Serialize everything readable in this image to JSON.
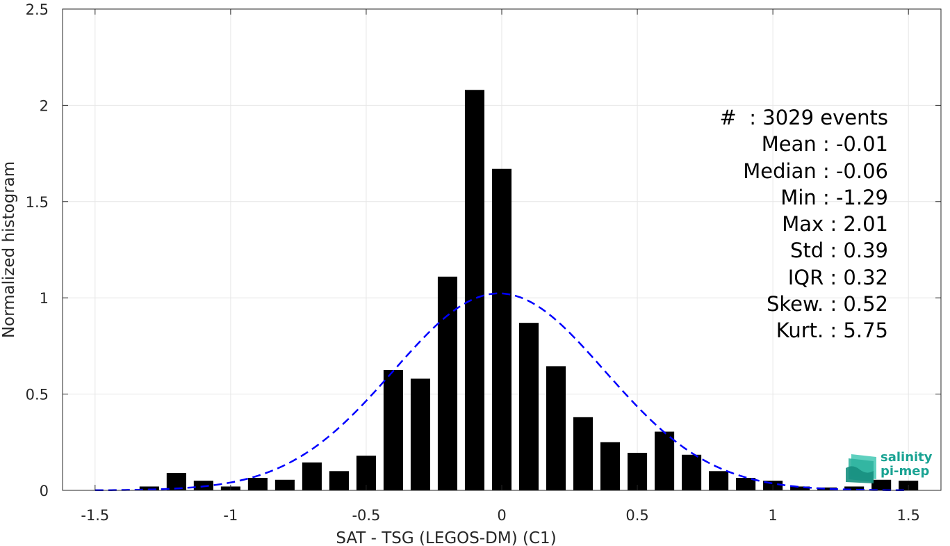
{
  "chart_data": {
    "type": "bar",
    "xlabel": "SAT - TSG (LEGOS-DM) (C1)",
    "ylabel": "Normalized histogram",
    "xlim": [
      -1.62,
      1.62
    ],
    "ylim": [
      0,
      2.5
    ],
    "xticks": [
      "-1.5",
      "-1",
      "-0.5",
      "0",
      "0.5",
      "1",
      "1.5"
    ],
    "xtick_values": [
      -1.5,
      -1,
      -0.5,
      0,
      0.5,
      1,
      1.5
    ],
    "yticks": [
      "0",
      "0.5",
      "1",
      "1.5",
      "2",
      "2.5"
    ],
    "ytick_values": [
      0,
      0.5,
      1,
      1.5,
      2,
      2.5
    ],
    "grid": true,
    "bar_color": "#000000",
    "bin_width": 0.1,
    "x": [
      -1.3,
      -1.2,
      -1.1,
      -1.0,
      -0.9,
      -0.8,
      -0.7,
      -0.6,
      -0.5,
      -0.4,
      -0.3,
      -0.2,
      -0.1,
      0.0,
      0.1,
      0.2,
      0.3,
      0.4,
      0.5,
      0.6,
      0.7,
      0.8,
      0.9,
      1.0,
      1.1,
      1.2,
      1.3,
      1.4,
      1.5
    ],
    "values": [
      0.02,
      0.09,
      0.05,
      0.02,
      0.065,
      0.055,
      0.145,
      0.1,
      0.18,
      0.625,
      0.58,
      1.11,
      2.08,
      1.67,
      0.87,
      0.645,
      0.38,
      0.25,
      0.195,
      0.305,
      0.185,
      0.1,
      0.065,
      0.05,
      0.02,
      0.015,
      0.02,
      0.055,
      0.05
    ],
    "fit": {
      "type": "normal",
      "mean": -0.01,
      "std": 0.39,
      "color": "#0000ff",
      "style": "dashed",
      "x_range": [
        -1.5,
        1.5
      ]
    }
  },
  "stats": [
    "#  : 3029 events",
    "Mean : -0.01",
    "Median : -0.06",
    "Min : -1.29",
    "Max : 2.01",
    "Std : 0.39",
    "IQR : 0.32",
    "Skew. : 0.52",
    "Kurt. : 5.75"
  ],
  "logo": {
    "line1": "salinity",
    "line2": "pi-mep",
    "color": "#1aa393"
  }
}
